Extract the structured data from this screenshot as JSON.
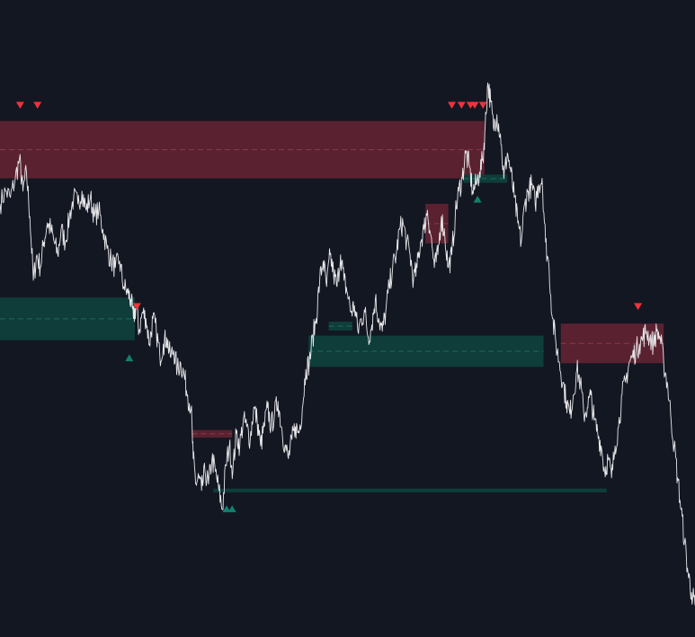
{
  "theme": {
    "background": "#131722",
    "price_line": "#e8e8ea",
    "supply_zone": "#5a2230",
    "demand_zone": "#0e3d3a",
    "supply_marker": "#f0323c",
    "demand_marker": "#12806e",
    "zone_midline_supply": "#8a3a48",
    "zone_midline_demand": "#1e6a62"
  },
  "chart_data": {
    "type": "line",
    "title": "",
    "xlabel": "",
    "ylabel": "",
    "xlim": [
      0,
      1000
    ],
    "ylim": [
      0,
      1000
    ],
    "series": [
      {
        "points": [
          [
            0,
            680
          ],
          [
            8,
            700
          ],
          [
            15,
            690
          ],
          [
            22,
            720
          ],
          [
            28,
            750
          ],
          [
            33,
            700
          ],
          [
            38,
            730
          ],
          [
            43,
            660
          ],
          [
            48,
            560
          ],
          [
            53,
            600
          ],
          [
            58,
            580
          ],
          [
            63,
            620
          ],
          [
            68,
            650
          ],
          [
            73,
            640
          ],
          [
            78,
            620
          ],
          [
            83,
            600
          ],
          [
            88,
            640
          ],
          [
            94,
            620
          ],
          [
            100,
            660
          ],
          [
            106,
            690
          ],
          [
            112,
            680
          ],
          [
            118,
            700
          ],
          [
            124,
            670
          ],
          [
            130,
            690
          ],
          [
            136,
            660
          ],
          [
            142,
            670
          ],
          [
            148,
            640
          ],
          [
            154,
            610
          ],
          [
            160,
            590
          ],
          [
            166,
            580
          ],
          [
            172,
            590
          ],
          [
            178,
            550
          ],
          [
            184,
            540
          ],
          [
            188,
            530
          ],
          [
            192,
            500
          ],
          [
            196,
            520
          ],
          [
            200,
            480
          ],
          [
            205,
            510
          ],
          [
            210,
            500
          ],
          [
            215,
            460
          ],
          [
            220,
            500
          ],
          [
            225,
            480
          ],
          [
            230,
            440
          ],
          [
            235,
            460
          ],
          [
            240,
            470
          ],
          [
            245,
            440
          ],
          [
            250,
            450
          ],
          [
            255,
            420
          ],
          [
            260,
            430
          ],
          [
            265,
            410
          ],
          [
            270,
            380
          ],
          [
            275,
            360
          ],
          [
            278,
            280
          ],
          [
            282,
            240
          ],
          [
            286,
            250
          ],
          [
            290,
            230
          ],
          [
            295,
            260
          ],
          [
            300,
            240
          ],
          [
            305,
            280
          ],
          [
            310,
            260
          ],
          [
            315,
            230
          ],
          [
            320,
            200
          ],
          [
            325,
            270
          ],
          [
            330,
            300
          ],
          [
            335,
            260
          ],
          [
            340,
            320
          ],
          [
            345,
            300
          ],
          [
            350,
            340
          ],
          [
            355,
            330
          ],
          [
            360,
            310
          ],
          [
            365,
            360
          ],
          [
            370,
            340
          ],
          [
            375,
            300
          ],
          [
            380,
            330
          ],
          [
            385,
            360
          ],
          [
            390,
            330
          ],
          [
            395,
            350
          ],
          [
            400,
            370
          ],
          [
            405,
            330
          ],
          [
            410,
            300
          ],
          [
            415,
            280
          ],
          [
            420,
            310
          ],
          [
            425,
            330
          ],
          [
            430,
            320
          ],
          [
            435,
            360
          ],
          [
            440,
            420
          ],
          [
            445,
            430
          ],
          [
            450,
            470
          ],
          [
            455,
            500
          ],
          [
            460,
            560
          ],
          [
            465,
            590
          ],
          [
            470,
            550
          ],
          [
            475,
            600
          ],
          [
            480,
            570
          ],
          [
            485,
            550
          ],
          [
            490,
            600
          ],
          [
            495,
            560
          ],
          [
            500,
            540
          ],
          [
            505,
            510
          ],
          [
            510,
            520
          ],
          [
            515,
            480
          ],
          [
            520,
            500
          ],
          [
            525,
            510
          ],
          [
            530,
            470
          ],
          [
            535,
            490
          ],
          [
            540,
            530
          ],
          [
            545,
            500
          ],
          [
            550,
            480
          ],
          [
            555,
            510
          ],
          [
            560,
            550
          ],
          [
            565,
            580
          ],
          [
            570,
            600
          ],
          [
            575,
            640
          ],
          [
            580,
            650
          ],
          [
            585,
            620
          ],
          [
            590,
            600
          ],
          [
            595,
            560
          ],
          [
            600,
            580
          ],
          [
            605,
            620
          ],
          [
            610,
            640
          ],
          [
            615,
            670
          ],
          [
            620,
            630
          ],
          [
            625,
            580
          ],
          [
            630,
            600
          ],
          [
            635,
            660
          ],
          [
            640,
            630
          ],
          [
            645,
            580
          ],
          [
            650,
            600
          ],
          [
            655,
            660
          ],
          [
            660,
            700
          ],
          [
            665,
            720
          ],
          [
            670,
            760
          ],
          [
            675,
            740
          ],
          [
            680,
            700
          ],
          [
            685,
            710
          ],
          [
            690,
            730
          ],
          [
            695,
            750
          ],
          [
            698,
            800
          ],
          [
            702,
            870
          ],
          [
            706,
            840
          ],
          [
            710,
            800
          ],
          [
            715,
            820
          ],
          [
            720,
            790
          ],
          [
            725,
            720
          ],
          [
            730,
            760
          ],
          [
            735,
            730
          ],
          [
            740,
            690
          ],
          [
            745,
            650
          ],
          [
            750,
            620
          ],
          [
            755,
            680
          ],
          [
            760,
            700
          ],
          [
            765,
            710
          ],
          [
            770,
            680
          ],
          [
            775,
            710
          ],
          [
            780,
            720
          ],
          [
            785,
            620
          ],
          [
            790,
            580
          ],
          [
            795,
            500
          ],
          [
            800,
            460
          ],
          [
            805,
            430
          ],
          [
            810,
            400
          ],
          [
            815,
            370
          ],
          [
            820,
            350
          ],
          [
            825,
            380
          ],
          [
            830,
            420
          ],
          [
            835,
            400
          ],
          [
            840,
            350
          ],
          [
            845,
            360
          ],
          [
            850,
            380
          ],
          [
            855,
            340
          ],
          [
            860,
            320
          ],
          [
            865,
            300
          ],
          [
            870,
            260
          ],
          [
            875,
            280
          ],
          [
            880,
            250
          ],
          [
            885,
            300
          ],
          [
            890,
            330
          ],
          [
            895,
            380
          ],
          [
            900,
            400
          ],
          [
            905,
            430
          ],
          [
            910,
            440
          ],
          [
            915,
            450
          ],
          [
            920,
            460
          ],
          [
            925,
            470
          ],
          [
            930,
            480
          ],
          [
            935,
            470
          ],
          [
            940,
            460
          ],
          [
            945,
            480
          ],
          [
            950,
            470
          ],
          [
            955,
            430
          ],
          [
            960,
            400
          ],
          [
            965,
            350
          ],
          [
            970,
            300
          ],
          [
            975,
            250
          ],
          [
            980,
            200
          ],
          [
            985,
            150
          ],
          [
            990,
            100
          ],
          [
            995,
            70
          ],
          [
            1000,
            50
          ]
        ]
      }
    ],
    "zones": [
      {
        "kind": "supply",
        "x0": 0,
        "x1": 697,
        "y0": 720,
        "y1": 810
      },
      {
        "kind": "supply",
        "x0": 612,
        "x1": 645,
        "y0": 618,
        "y1": 680
      },
      {
        "kind": "supply",
        "x0": 276,
        "x1": 334,
        "y0": 313,
        "y1": 325
      },
      {
        "kind": "supply",
        "x0": 807,
        "x1": 955,
        "y0": 430,
        "y1": 492
      },
      {
        "kind": "demand",
        "x0": 0,
        "x1": 194,
        "y0": 466,
        "y1": 533
      },
      {
        "kind": "demand",
        "x0": 444,
        "x1": 782,
        "y0": 424,
        "y1": 473
      },
      {
        "kind": "demand",
        "x0": 473,
        "x1": 507,
        "y0": 481,
        "y1": 495
      },
      {
        "kind": "demand",
        "x0": 667,
        "x1": 730,
        "y0": 713,
        "y1": 726
      },
      {
        "kind": "demand",
        "x0": 307,
        "x1": 873,
        "y0": 227,
        "y1": 233
      }
    ],
    "markers": [
      {
        "kind": "supply",
        "x": 29,
        "y": 835
      },
      {
        "kind": "supply",
        "x": 54,
        "y": 835
      },
      {
        "kind": "supply",
        "x": 650,
        "y": 835
      },
      {
        "kind": "supply",
        "x": 664,
        "y": 835
      },
      {
        "kind": "supply",
        "x": 677,
        "y": 835
      },
      {
        "kind": "supply",
        "x": 683,
        "y": 835
      },
      {
        "kind": "supply",
        "x": 695,
        "y": 835
      },
      {
        "kind": "supply",
        "x": 197,
        "y": 519
      },
      {
        "kind": "supply",
        "x": 918,
        "y": 519
      },
      {
        "kind": "demand",
        "x": 186,
        "y": 438
      },
      {
        "kind": "demand",
        "x": 326,
        "y": 201
      },
      {
        "kind": "demand",
        "x": 334,
        "y": 201
      },
      {
        "kind": "demand",
        "x": 687,
        "y": 687
      }
    ]
  }
}
